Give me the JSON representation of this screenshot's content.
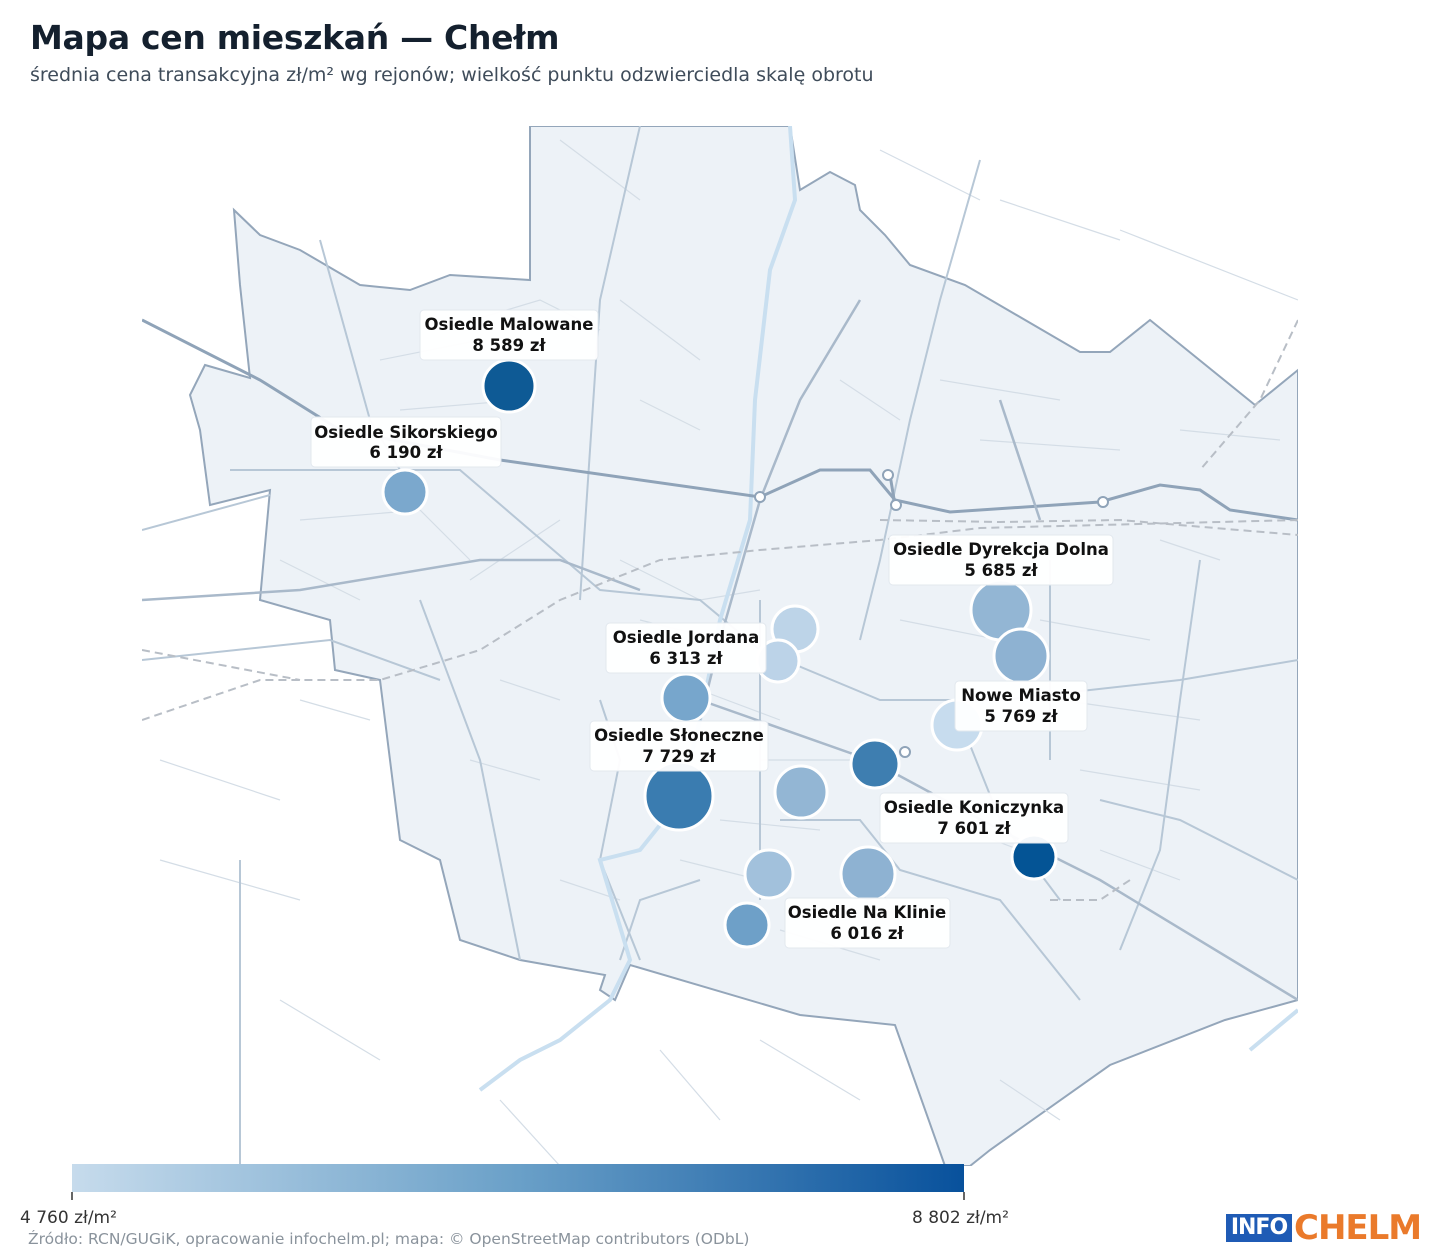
{
  "title": "Mapa cen mieszkań — Chełm",
  "subtitle": "średnia cena transakcyjna zł/m² wg rejonów; wielkość punktu odzwierciedla skalę obrotu",
  "legend": {
    "min_label": "4 760 zł/m²",
    "max_label": "8 802 zł/m²",
    "min_value": 4760,
    "max_value": 8802,
    "color_low": "#c6dbec",
    "color_high": "#08519c"
  },
  "source": "Źródło: RCN/GUGiK, opracowanie infochelm.pl; mapa: © OpenStreetMap contributors (ODbL)",
  "logo": {
    "part1": "INFO",
    "part2": "CHELM",
    "color1": "#1f5bb5",
    "color2": "#ea7a2b"
  },
  "map_data": {
    "labeled_districts": [
      {
        "name": "Osiedle Malowane",
        "price": "8 589 zł",
        "value": 8589
      },
      {
        "name": "Osiedle Sikorskiego",
        "price": "6 190 zł",
        "value": 6190
      },
      {
        "name": "Osiedle Dyrekcja Dolna",
        "price": "5 685 zł",
        "value": 5685
      },
      {
        "name": "Osiedle Jordana",
        "price": "6 313 zł",
        "value": 6313
      },
      {
        "name": "Nowe Miasto",
        "price": "5 769 zł",
        "value": 5769
      },
      {
        "name": "Osiedle Słoneczne",
        "price": "7 729 zł",
        "value": 7729
      },
      {
        "name": "Osiedle Koniczynka",
        "price": "7 601 zł",
        "value": 7601
      },
      {
        "name": "Osiedle Na Klinie",
        "price": "6 016 zł",
        "value": 6016
      }
    ]
  }
}
